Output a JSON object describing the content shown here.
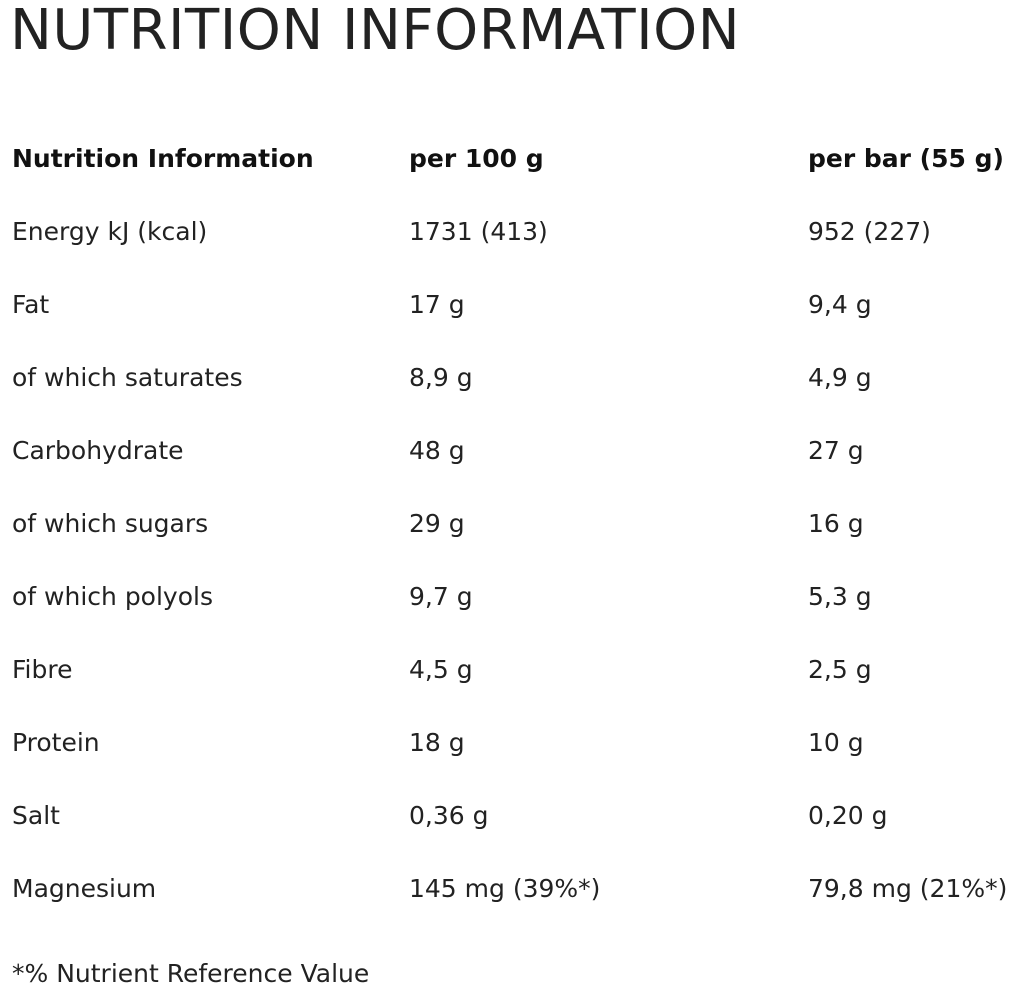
{
  "title": "NUTRITION INFORMATION",
  "table": {
    "headers": [
      "Nutrition Information",
      "per 100 g",
      "per bar (55 g)"
    ],
    "rows": [
      [
        "Energy kJ (kcal)",
        "1731 (413)",
        "952 (227)"
      ],
      [
        "Fat",
        "17 g",
        "9,4 g"
      ],
      [
        "of which saturates",
        "8,9 g",
        "4,9 g"
      ],
      [
        "Carbohydrate",
        "48 g",
        "27 g"
      ],
      [
        "of which sugars",
        "29 g",
        "16 g"
      ],
      [
        "of which polyols",
        "9,7 g",
        "5,3 g"
      ],
      [
        "Fibre",
        "4,5 g",
        "2,5 g"
      ],
      [
        "Protein",
        "18 g",
        "10 g"
      ],
      [
        "Salt",
        "0,36 g",
        "0,20 g"
      ],
      [
        "Magnesium",
        "145 mg (39%*)",
        "79,8 mg (21%*)"
      ]
    ]
  },
  "footnote": "*% Nutrient Reference Value"
}
